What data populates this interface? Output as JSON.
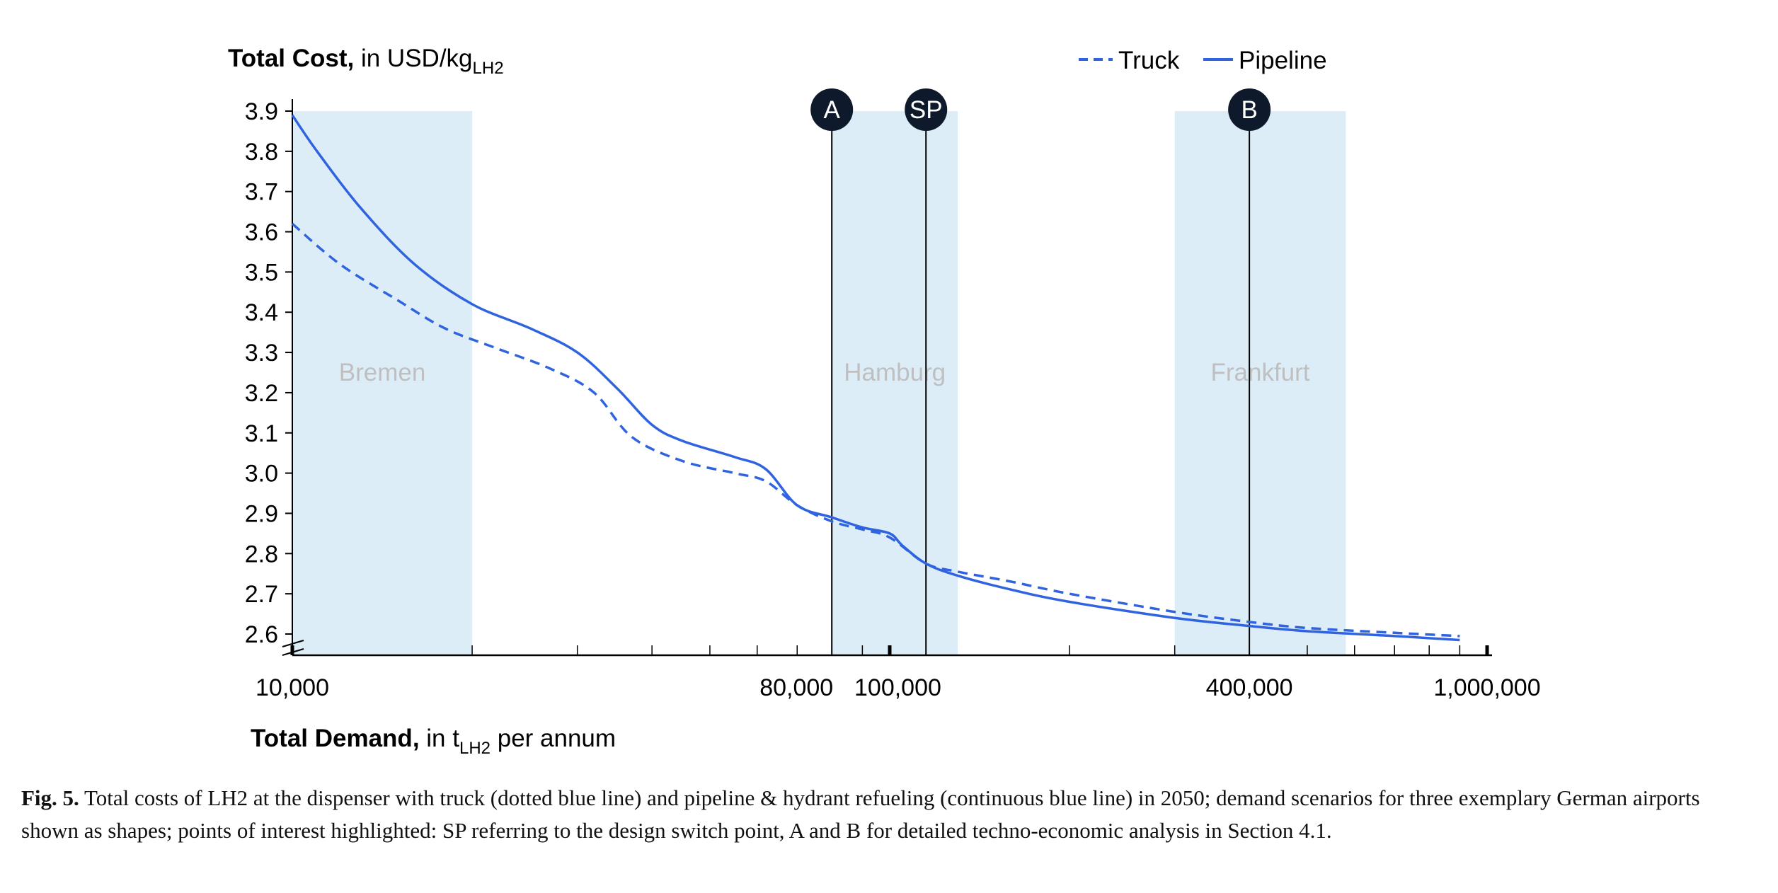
{
  "chart_data": {
    "type": "line",
    "title": {
      "bold": "Total Cost,",
      "rest": " in USD/kg",
      "sub": "LH2"
    },
    "xlabel": {
      "bold": "Total Demand,",
      "pre": " in t",
      "sub": "LH2",
      "post": " per annum"
    },
    "x_scale": "log",
    "xlim": [
      10000,
      1000000
    ],
    "ylim": [
      2.6,
      3.9
    ],
    "y_ticks": [
      "3.9",
      "3.8",
      "3.7",
      "3.6",
      "3.5",
      "3.4",
      "3.3",
      "3.2",
      "3.1",
      "3.0",
      "2.9",
      "2.8",
      "2.7",
      "2.6"
    ],
    "x_tick_labels": [
      "10,000",
      "80,000",
      "100,000",
      "400,000",
      "1,000,000"
    ],
    "legend": {
      "position": "top-right",
      "entries": [
        "Truck",
        "Pipeline"
      ]
    },
    "colors": {
      "line": "#2f63e0",
      "region": "#dcedf8",
      "marker": "#0e1a2b"
    },
    "regions": [
      {
        "name": "Bremen",
        "x_start": 10000,
        "x_end": 20000
      },
      {
        "name": "Hamburg",
        "x_start": 80000,
        "x_end": 130000
      },
      {
        "name": "Frankfurt",
        "x_start": 300000,
        "x_end": 580000
      }
    ],
    "markers": [
      {
        "label": "A",
        "x": 80000
      },
      {
        "label": "SP",
        "x": 115000
      },
      {
        "label": "B",
        "x": 400000
      }
    ],
    "series": [
      {
        "name": "Truck",
        "style": "dashed",
        "x": [
          10000,
          12000,
          15000,
          18000,
          22000,
          27000,
          32000,
          37000,
          45000,
          55000,
          62000,
          70000,
          80000,
          90000,
          100000,
          115000,
          130000,
          160000,
          200000,
          300000,
          400000,
          500000,
          700000,
          900000
        ],
        "y": [
          3.62,
          3.52,
          3.43,
          3.36,
          3.31,
          3.26,
          3.2,
          3.09,
          3.03,
          3.0,
          2.98,
          2.92,
          2.88,
          2.86,
          2.84,
          2.775,
          2.755,
          2.73,
          2.7,
          2.655,
          2.63,
          2.615,
          2.603,
          2.595
        ]
      },
      {
        "name": "Pipeline",
        "style": "solid",
        "x": [
          10000,
          11000,
          13000,
          16000,
          20000,
          25000,
          30000,
          35000,
          40000,
          45000,
          55000,
          62000,
          70000,
          80000,
          90000,
          100000,
          105000,
          115000,
          130000,
          160000,
          200000,
          300000,
          400000,
          500000,
          700000,
          900000
        ],
        "y": [
          3.89,
          3.8,
          3.66,
          3.52,
          3.42,
          3.36,
          3.3,
          3.21,
          3.12,
          3.08,
          3.04,
          3.01,
          2.92,
          2.89,
          2.865,
          2.85,
          2.82,
          2.775,
          2.745,
          2.71,
          2.68,
          2.64,
          2.62,
          2.607,
          2.595,
          2.585
        ]
      }
    ]
  },
  "caption": {
    "label": "Fig. 5.",
    "text": "  Total costs of LH2 at the dispenser with truck (dotted blue line) and pipeline & hydrant refueling (continuous blue line) in 2050; demand scenarios for three exemplary German airports shown as shapes; points of interest highlighted: SP referring to the design switch point, A and B for detailed techno-economic analysis in Section 4.1."
  }
}
